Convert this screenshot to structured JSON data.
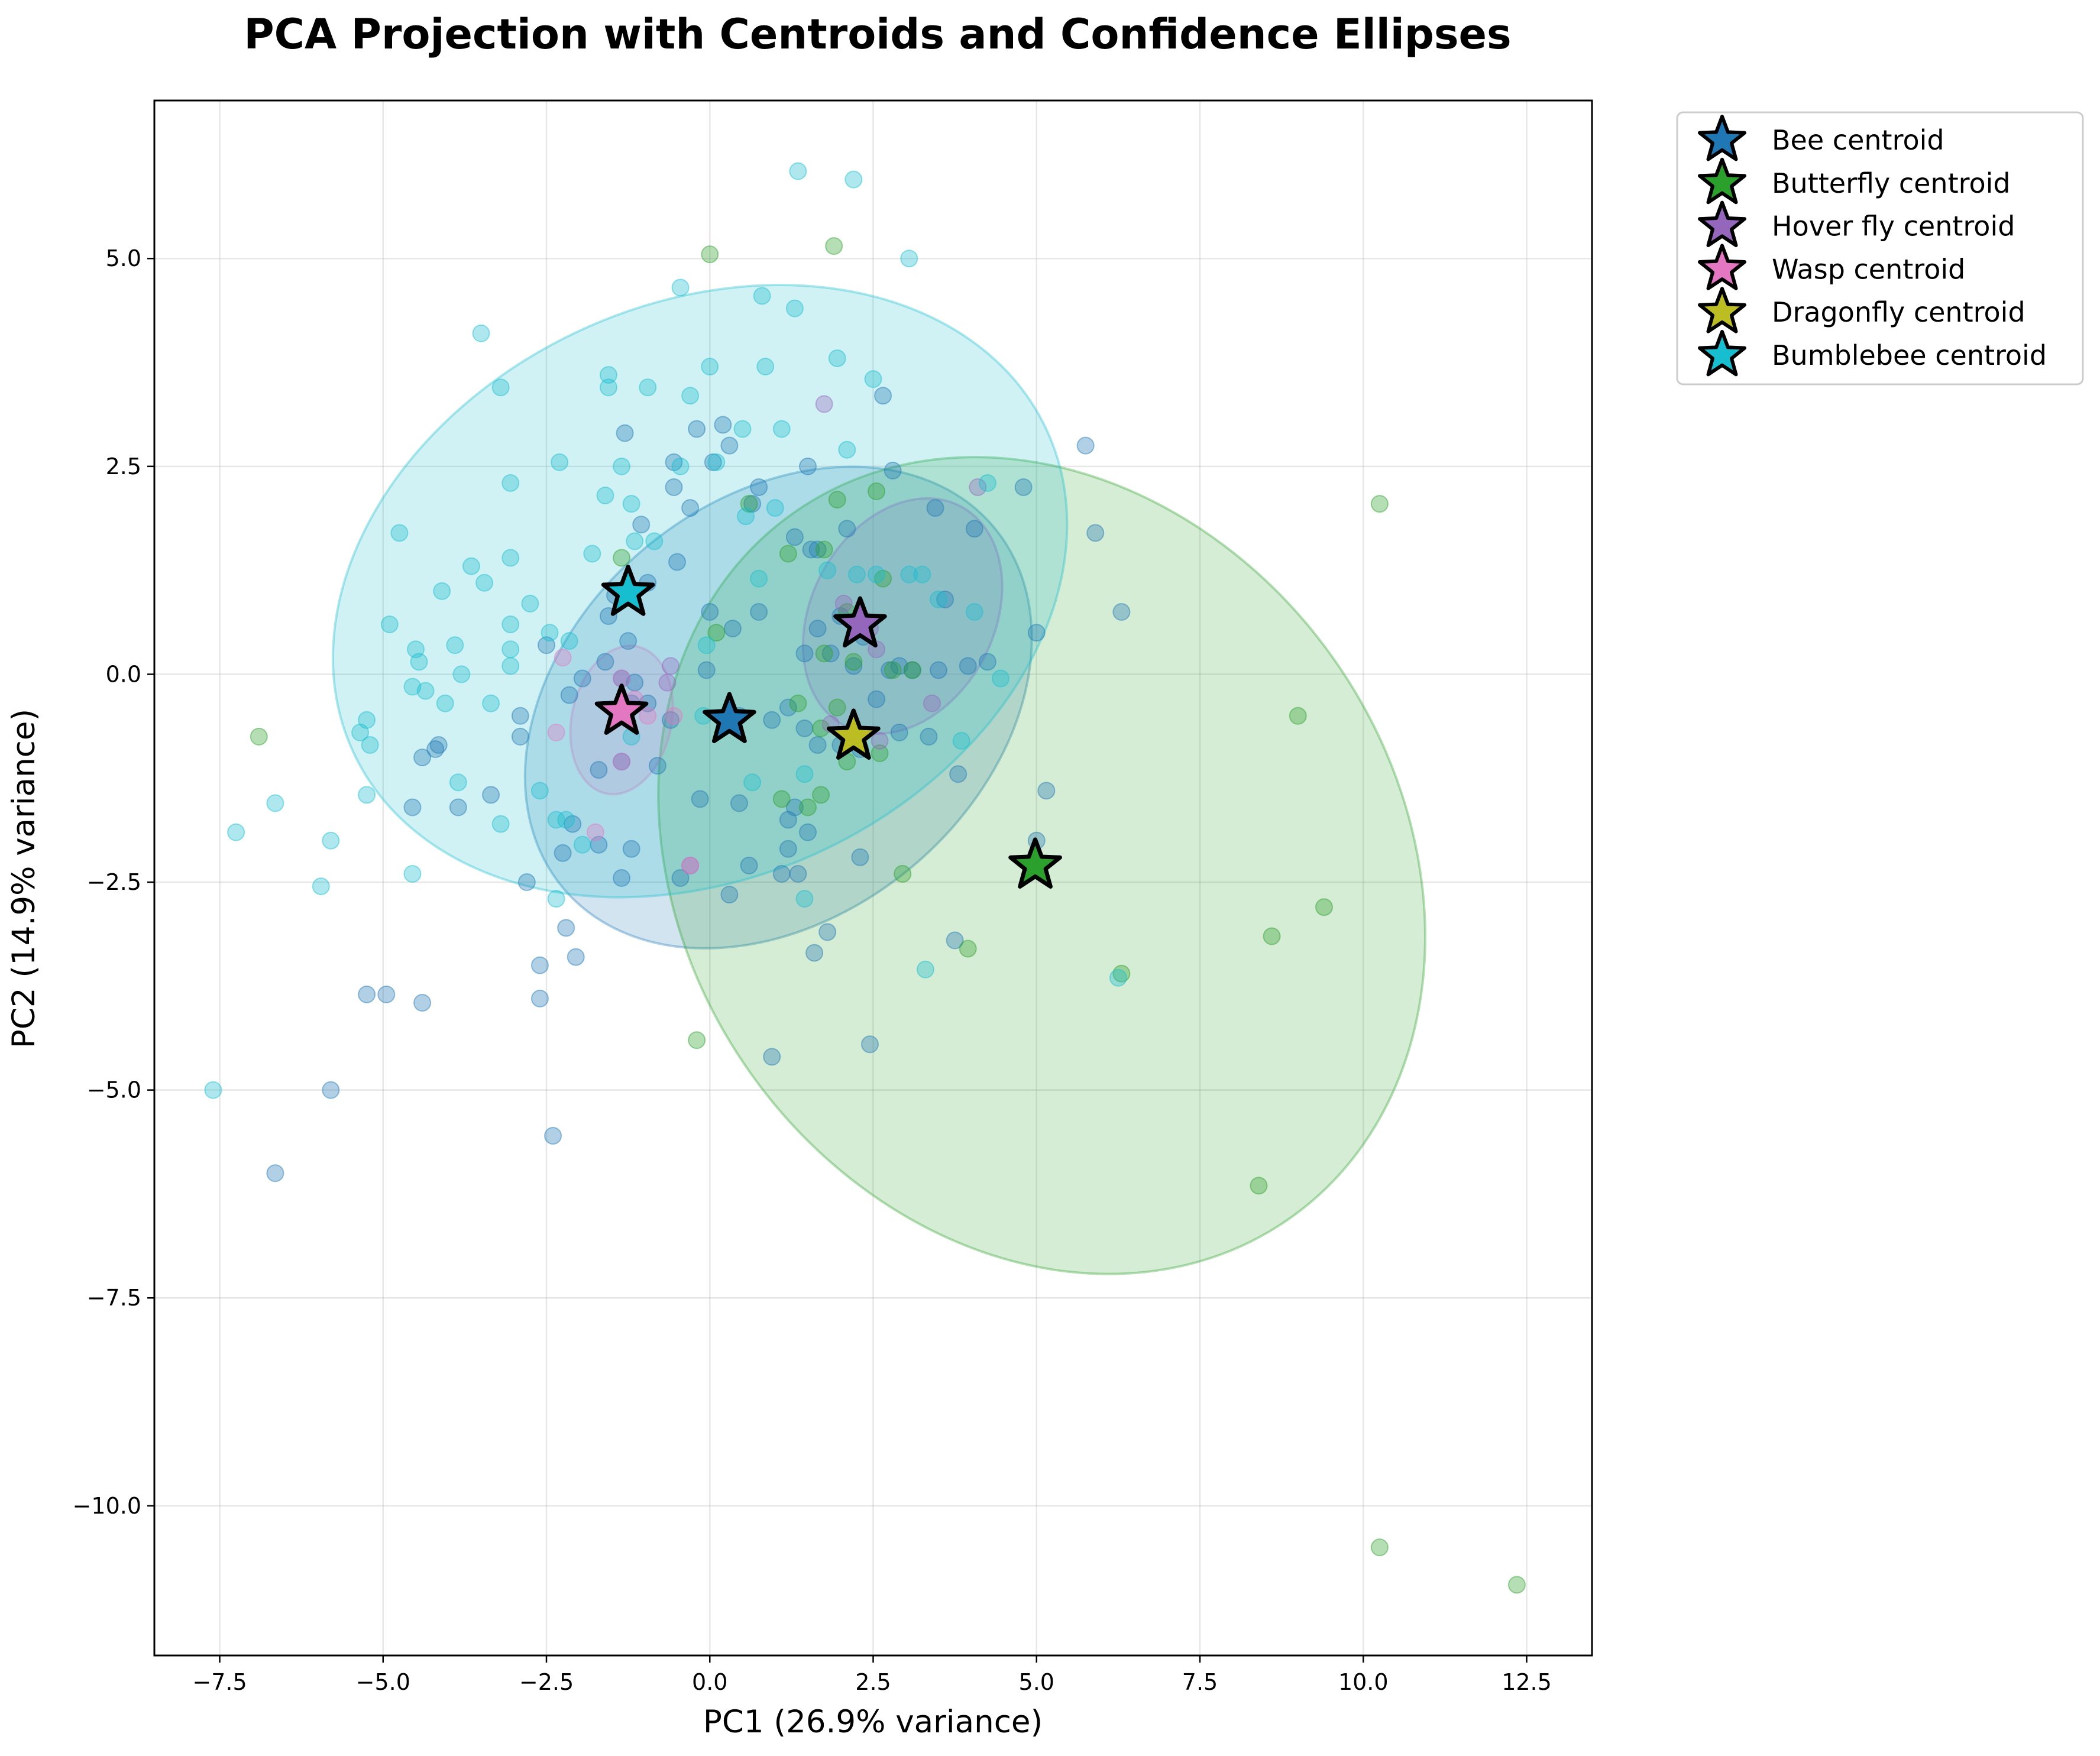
{
  "chart_data": {
    "type": "scatter",
    "title": "PCA Projection with Centroids and Confidence Ellipses",
    "xlabel": "PC1 (26.9% variance)",
    "ylabel": "PC2 (14.9% variance)",
    "xlim": [
      -8.5,
      13.5
    ],
    "ylim": [
      -11.8,
      6.9
    ],
    "xticks": [
      -7.5,
      -5.0,
      -2.5,
      0.0,
      2.5,
      5.0,
      7.5,
      10.0,
      12.5
    ],
    "xtick_labels": [
      "−7.5",
      "−5.0",
      "−2.5",
      "0.0",
      "2.5",
      "5.0",
      "7.5",
      "10.0",
      "12.5"
    ],
    "yticks": [
      5.0,
      2.5,
      0.0,
      -2.5,
      -5.0,
      -7.5,
      -10.0
    ],
    "ytick_labels": [
      "5.0",
      "2.5",
      "0.0",
      "−2.5",
      "−5.0",
      "−7.5",
      "−10.0"
    ],
    "grid": true,
    "legend_position": "outside-top-right",
    "series": [
      {
        "name": "Bee centroid",
        "color": "#1f77b4",
        "centroid": [
          0.3,
          -0.55
        ],
        "ellipse": {
          "cx": 1.05,
          "cy": -0.4,
          "rx": 4.3,
          "ry": 2.5,
          "angle_deg": 40
        },
        "points": [
          [
            -1.3,
            2.9
          ],
          [
            -0.2,
            2.95
          ],
          [
            -0.55,
            2.55
          ],
          [
            -0.55,
            2.25
          ],
          [
            -0.3,
            2.0
          ],
          [
            0.05,
            2.55
          ],
          [
            0.2,
            3.0
          ],
          [
            0.3,
            2.75
          ],
          [
            0.65,
            2.05
          ],
          [
            0.75,
            2.25
          ],
          [
            1.5,
            2.5
          ],
          [
            2.65,
            3.35
          ],
          [
            2.8,
            2.45
          ],
          [
            4.8,
            2.25
          ],
          [
            5.75,
            2.75
          ],
          [
            5.9,
            1.7
          ],
          [
            -1.05,
            1.8
          ],
          [
            -0.5,
            1.35
          ],
          [
            -0.95,
            1.1
          ],
          [
            1.55,
            1.5
          ],
          [
            1.3,
            1.65
          ],
          [
            2.1,
            1.75
          ],
          [
            1.65,
            1.5
          ],
          [
            3.45,
            2.0
          ],
          [
            3.6,
            0.9
          ],
          [
            4.05,
            1.75
          ],
          [
            -1.45,
            0.95
          ],
          [
            -1.55,
            0.7
          ],
          [
            -1.25,
            0.4
          ],
          [
            -1.6,
            0.15
          ],
          [
            -1.35,
            -0.05
          ],
          [
            -1.15,
            -0.1
          ],
          [
            -1.95,
            -0.05
          ],
          [
            -2.15,
            -0.25
          ],
          [
            -2.5,
            0.35
          ],
          [
            -2.9,
            -0.5
          ],
          [
            -2.9,
            -0.75
          ],
          [
            -1.2,
            -0.35
          ],
          [
            -0.95,
            -0.35
          ],
          [
            -0.6,
            -0.55
          ],
          [
            -0.05,
            0.05
          ],
          [
            0.0,
            0.75
          ],
          [
            0.35,
            0.55
          ],
          [
            0.75,
            0.75
          ],
          [
            1.45,
            0.25
          ],
          [
            1.65,
            0.55
          ],
          [
            1.85,
            0.25
          ],
          [
            2.0,
            0.7
          ],
          [
            2.2,
            0.1
          ],
          [
            2.35,
            0.45
          ],
          [
            2.75,
            0.05
          ],
          [
            2.9,
            0.1
          ],
          [
            3.1,
            0.05
          ],
          [
            3.5,
            0.05
          ],
          [
            3.95,
            0.1
          ],
          [
            4.25,
            0.15
          ],
          [
            5.0,
            0.5
          ],
          [
            6.3,
            0.75
          ],
          [
            0.45,
            -0.5
          ],
          [
            0.95,
            -0.55
          ],
          [
            1.2,
            -0.4
          ],
          [
            1.45,
            -0.65
          ],
          [
            1.65,
            -0.85
          ],
          [
            2.0,
            -0.85
          ],
          [
            2.3,
            -0.9
          ],
          [
            2.55,
            -0.3
          ],
          [
            2.9,
            -0.7
          ],
          [
            3.35,
            -0.75
          ],
          [
            3.8,
            -1.2
          ],
          [
            1.2,
            -1.75
          ],
          [
            1.5,
            -1.9
          ],
          [
            1.3,
            -1.6
          ],
          [
            0.45,
            -1.55
          ],
          [
            -0.15,
            -1.5
          ],
          [
            -0.8,
            -1.1
          ],
          [
            -1.35,
            -1.05
          ],
          [
            -1.7,
            -1.15
          ],
          [
            -2.1,
            -1.8
          ],
          [
            -2.25,
            -2.15
          ],
          [
            -1.7,
            -2.05
          ],
          [
            -1.2,
            -2.1
          ],
          [
            -1.35,
            -2.45
          ],
          [
            -0.45,
            -2.45
          ],
          [
            0.3,
            -2.65
          ],
          [
            0.6,
            -2.3
          ],
          [
            1.1,
            -2.4
          ],
          [
            1.35,
            -2.4
          ],
          [
            1.2,
            -2.1
          ],
          [
            2.3,
            -2.2
          ],
          [
            1.8,
            -3.1
          ],
          [
            1.6,
            -3.35
          ],
          [
            2.45,
            -4.45
          ],
          [
            0.95,
            -4.6
          ],
          [
            3.75,
            -3.2
          ],
          [
            5.0,
            -2.0
          ],
          [
            5.15,
            -1.4
          ],
          [
            -3.35,
            -1.45
          ],
          [
            -3.85,
            -1.6
          ],
          [
            -4.15,
            -0.85
          ],
          [
            -4.2,
            -0.9
          ],
          [
            -4.4,
            -1.0
          ],
          [
            -4.55,
            -1.6
          ],
          [
            -2.8,
            -2.5
          ],
          [
            -2.6,
            -3.5
          ],
          [
            -2.6,
            -3.9
          ],
          [
            -2.2,
            -3.05
          ],
          [
            -2.05,
            -3.4
          ],
          [
            -2.4,
            -5.55
          ],
          [
            -5.25,
            -3.85
          ],
          [
            -4.95,
            -3.85
          ],
          [
            -4.4,
            -3.95
          ],
          [
            -5.8,
            -5.0
          ],
          [
            -6.65,
            -6.0
          ]
        ]
      },
      {
        "name": "Butterfly centroid",
        "color": "#2ca02c",
        "centroid": [
          4.98,
          -2.3
        ],
        "ellipse": {
          "cx": 5.08,
          "cy": -2.3,
          "rx": 6.6,
          "ry": 4.3,
          "angle_deg": -55
        },
        "points": [
          [
            0.0,
            5.05
          ],
          [
            1.9,
            5.15
          ],
          [
            -1.35,
            1.4
          ],
          [
            1.95,
            2.1
          ],
          [
            2.55,
            2.2
          ],
          [
            2.65,
            1.15
          ],
          [
            1.75,
            1.5
          ],
          [
            2.1,
            0.75
          ],
          [
            1.75,
            0.25
          ],
          [
            2.2,
            0.15
          ],
          [
            2.8,
            0.05
          ],
          [
            3.1,
            0.05
          ],
          [
            1.35,
            -0.35
          ],
          [
            1.95,
            -0.4
          ],
          [
            1.7,
            -0.65
          ],
          [
            2.1,
            -1.05
          ],
          [
            2.6,
            -0.95
          ],
          [
            1.7,
            -1.45
          ],
          [
            1.1,
            -1.5
          ],
          [
            1.5,
            -1.6
          ],
          [
            2.95,
            -2.4
          ],
          [
            3.95,
            -3.3
          ],
          [
            6.3,
            -3.6
          ],
          [
            8.6,
            -3.15
          ],
          [
            9.4,
            -2.8
          ],
          [
            9.0,
            -0.5
          ],
          [
            10.25,
            2.05
          ],
          [
            8.4,
            -6.15
          ],
          [
            10.25,
            -10.5
          ],
          [
            12.35,
            -10.95
          ],
          [
            -0.2,
            -4.4
          ],
          [
            -6.9,
            -0.75
          ],
          [
            0.6,
            2.05
          ],
          [
            1.2,
            1.45
          ],
          [
            0.1,
            0.5
          ]
        ]
      },
      {
        "name": "Hover fly centroid",
        "color": "#9467bd",
        "centroid": [
          2.3,
          0.6
        ],
        "ellipse": {
          "cx": 2.95,
          "cy": 0.7,
          "rx": 1.9,
          "ry": 1.1,
          "angle_deg": 62
        },
        "points": [
          [
            1.75,
            3.25
          ],
          [
            4.1,
            2.25
          ],
          [
            2.05,
            0.85
          ],
          [
            2.45,
            0.55
          ],
          [
            2.55,
            0.3
          ],
          [
            2.6,
            -0.8
          ],
          [
            3.4,
            -0.35
          ],
          [
            1.85,
            -0.6
          ],
          [
            -0.3,
            -2.3
          ],
          [
            -0.65,
            -0.1
          ],
          [
            -0.6,
            0.1
          ]
        ]
      },
      {
        "name": "Wasp centroid",
        "color": "#e377c2",
        "centroid": [
          -1.35,
          -0.45
        ],
        "ellipse": {
          "cx": -1.35,
          "cy": -0.55,
          "rx": 1.15,
          "ry": 0.6,
          "angle_deg": 78
        },
        "points": [
          [
            -1.35,
            -0.05
          ],
          [
            -1.15,
            -0.3
          ],
          [
            -0.95,
            -0.5
          ],
          [
            -1.35,
            -1.05
          ],
          [
            -1.75,
            -1.9
          ],
          [
            -2.35,
            -0.7
          ],
          [
            -2.25,
            0.2
          ],
          [
            -0.55,
            -0.5
          ],
          [
            -0.3,
            -2.3
          ]
        ]
      },
      {
        "name": "Dragonfly centroid",
        "color": "#bcbd22",
        "centroid": [
          2.2,
          -0.75
        ],
        "ellipse": null,
        "points": []
      },
      {
        "name": "Bumblebee centroid",
        "color": "#17becf",
        "centroid": [
          -1.25,
          0.98
        ],
        "ellipse": {
          "cx": -0.15,
          "cy": 1.0,
          "rx": 5.85,
          "ry": 3.45,
          "angle_deg": 25
        },
        "points": [
          [
            1.35,
            6.05
          ],
          [
            2.2,
            5.95
          ],
          [
            3.05,
            5.0
          ],
          [
            -0.45,
            4.65
          ],
          [
            0.8,
            4.55
          ],
          [
            1.3,
            4.4
          ],
          [
            -3.5,
            4.1
          ],
          [
            -3.2,
            3.45
          ],
          [
            -1.55,
            3.6
          ],
          [
            -1.55,
            3.45
          ],
          [
            -0.95,
            3.45
          ],
          [
            -0.3,
            3.35
          ],
          [
            0.0,
            3.7
          ],
          [
            0.85,
            3.7
          ],
          [
            1.95,
            3.8
          ],
          [
            2.5,
            3.55
          ],
          [
            -3.05,
            2.3
          ],
          [
            -2.3,
            2.55
          ],
          [
            -1.35,
            2.5
          ],
          [
            -0.45,
            2.5
          ],
          [
            0.1,
            2.55
          ],
          [
            0.5,
            2.95
          ],
          [
            1.1,
            2.95
          ],
          [
            2.1,
            2.7
          ],
          [
            -4.75,
            1.7
          ],
          [
            -3.05,
            1.4
          ],
          [
            -3.65,
            1.3
          ],
          [
            -3.45,
            1.1
          ],
          [
            -4.1,
            1.0
          ],
          [
            -2.75,
            0.85
          ],
          [
            -1.8,
            1.45
          ],
          [
            -1.15,
            1.6
          ],
          [
            -1.2,
            2.05
          ],
          [
            -0.85,
            1.6
          ],
          [
            -1.6,
            2.15
          ],
          [
            -4.9,
            0.6
          ],
          [
            -3.05,
            0.6
          ],
          [
            -2.45,
            0.5
          ],
          [
            -2.15,
            0.4
          ],
          [
            -3.9,
            0.35
          ],
          [
            -4.5,
            0.3
          ],
          [
            -4.45,
            0.15
          ],
          [
            -3.05,
            0.3
          ],
          [
            -3.05,
            0.1
          ],
          [
            -3.8,
            0.0
          ],
          [
            -4.55,
            -0.15
          ],
          [
            -4.35,
            -0.2
          ],
          [
            -4.05,
            -0.35
          ],
          [
            -3.35,
            -0.35
          ],
          [
            -1.2,
            -0.75
          ],
          [
            -0.1,
            -0.5
          ],
          [
            -0.05,
            0.35
          ],
          [
            0.55,
            1.9
          ],
          [
            0.75,
            1.15
          ],
          [
            1.0,
            2.0
          ],
          [
            1.8,
            1.25
          ],
          [
            2.25,
            1.2
          ],
          [
            2.55,
            1.2
          ],
          [
            3.25,
            1.2
          ],
          [
            3.5,
            0.9
          ],
          [
            3.05,
            1.2
          ],
          [
            4.05,
            0.75
          ],
          [
            4.25,
            2.3
          ],
          [
            4.45,
            -0.05
          ],
          [
            3.85,
            -0.8
          ],
          [
            1.45,
            -1.2
          ],
          [
            0.65,
            -1.3
          ],
          [
            1.45,
            -2.7
          ],
          [
            3.3,
            -3.55
          ],
          [
            6.25,
            -3.65
          ],
          [
            -2.35,
            -1.75
          ],
          [
            -2.2,
            -1.75
          ],
          [
            -1.95,
            -2.05
          ],
          [
            -2.35,
            -2.7
          ],
          [
            -2.6,
            -1.4
          ],
          [
            -3.85,
            -1.3
          ],
          [
            -3.2,
            -1.8
          ],
          [
            -5.25,
            -0.55
          ],
          [
            -5.35,
            -0.7
          ],
          [
            -5.2,
            -0.85
          ],
          [
            -5.25,
            -1.45
          ],
          [
            -5.8,
            -2.0
          ],
          [
            -5.95,
            -2.55
          ],
          [
            -4.55,
            -2.4
          ],
          [
            -6.65,
            -1.55
          ],
          [
            -7.25,
            -1.9
          ],
          [
            -7.6,
            -5.0
          ]
        ]
      }
    ]
  }
}
